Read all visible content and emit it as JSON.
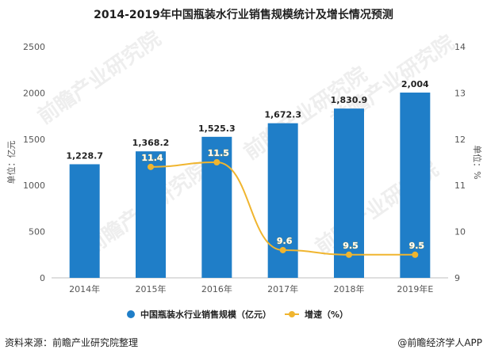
{
  "colors": {
    "bar": "#1f7ec8",
    "line": "#f0b52f",
    "axis_text": "#555555",
    "label_text": "#222222",
    "grid": "#e3e3e3",
    "watermark": "#d9d9d9"
  },
  "footer": {
    "source": "资料来源：前瞻产业研究院整理",
    "brand": "@前瞻经济学人APP"
  },
  "watermark": {
    "text": "前瞻产业研究院"
  },
  "chart_data": {
    "type": "bar",
    "title": "2014-2019年中国瓶装水行业销售规模统计及增长情况预测",
    "categories": [
      "2014年",
      "2015年",
      "2016年",
      "2017年",
      "2018年",
      "2019年E"
    ],
    "ylabel": "单位：亿元",
    "y2label": "单位：%",
    "ylim": [
      0,
      2500
    ],
    "yticks": [
      "0",
      "500",
      "1000",
      "1500",
      "2000",
      "2500"
    ],
    "y2lim": [
      9,
      14
    ],
    "y2ticks": [
      "9",
      "10",
      "11",
      "12",
      "13",
      "14"
    ],
    "grid": false,
    "legend_position": "bottom",
    "series": [
      {
        "name": "中国瓶装水行业销售规模（亿元）",
        "kind": "bar",
        "axis": "left",
        "values": [
          1228.7,
          1368.2,
          1525.3,
          1672.3,
          1830.9,
          2004
        ],
        "labels": [
          "1,228.7",
          "1,368.2",
          "1,525.3",
          "1,672.3",
          "1,830.9",
          "2,004"
        ]
      },
      {
        "name": "增速（%）",
        "kind": "line",
        "axis": "right",
        "values": [
          null,
          11.4,
          11.5,
          9.6,
          9.5,
          9.5
        ],
        "labels": [
          "",
          "11.4",
          "11.5",
          "9.6",
          "9.5",
          "9.5"
        ]
      }
    ]
  }
}
